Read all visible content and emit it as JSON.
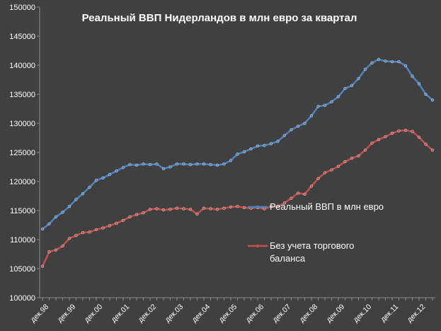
{
  "chart_data": {
    "type": "line",
    "title": "Реальный ВВП Нидерландов в млн евро за квартал",
    "xlabel": "",
    "ylabel": "",
    "ylim": [
      100000,
      150000
    ],
    "yticks": [
      100000,
      105000,
      110000,
      115000,
      120000,
      125000,
      130000,
      135000,
      140000,
      145000,
      150000
    ],
    "xtick_labels": [
      "дек.98",
      "дек.99",
      "дек.00",
      "дек.01",
      "дек.02",
      "дек.03",
      "дек.04",
      "дек.05",
      "дек.06",
      "дек.07",
      "дек.08",
      "дек.09",
      "дек.10",
      "дек.11",
      "дек.12"
    ],
    "x": [
      "1998 Q4",
      "1999 Q1",
      "1999 Q2",
      "1999 Q3",
      "1999 Q4",
      "2000 Q1",
      "2000 Q2",
      "2000 Q3",
      "2000 Q4",
      "2001 Q1",
      "2001 Q2",
      "2001 Q3",
      "2001 Q4",
      "2002 Q1",
      "2002 Q2",
      "2002 Q3",
      "2002 Q4",
      "2003 Q1",
      "2003 Q2",
      "2003 Q3",
      "2003 Q4",
      "2004 Q1",
      "2004 Q2",
      "2004 Q3",
      "2004 Q4",
      "2005 Q1",
      "2005 Q2",
      "2005 Q3",
      "2005 Q4",
      "2006 Q1",
      "2006 Q2",
      "2006 Q3",
      "2006 Q4",
      "2007 Q1",
      "2007 Q2",
      "2007 Q3",
      "2007 Q4",
      "2008 Q1",
      "2008 Q2",
      "2008 Q3",
      "2008 Q4",
      "2009 Q1",
      "2009 Q2",
      "2009 Q3",
      "2009 Q4",
      "2010 Q1",
      "2010 Q2",
      "2010 Q3",
      "2010 Q4",
      "2011 Q1",
      "2011 Q2",
      "2011 Q3",
      "2011 Q4",
      "2012 Q1",
      "2012 Q2",
      "2012 Q3",
      "2012 Q4",
      "2013 Q1",
      "2013 Q2"
    ],
    "series": [
      {
        "name": "Реальный ВВП в млн евро",
        "color": "#4f81bd",
        "values": [
          111800,
          112700,
          113900,
          114700,
          115700,
          116900,
          117900,
          119000,
          120200,
          120600,
          121200,
          121800,
          122400,
          122900,
          122800,
          123000,
          122900,
          123000,
          122200,
          122500,
          123000,
          123000,
          122900,
          123000,
          123000,
          122900,
          122800,
          123000,
          123600,
          124700,
          125100,
          125600,
          126100,
          126200,
          126500,
          126900,
          127900,
          128900,
          129500,
          130000,
          131300,
          132900,
          133100,
          133700,
          134600,
          136000,
          136500,
          137700,
          139300,
          140400,
          141000,
          140700,
          140600,
          140600,
          139900,
          138100,
          136800,
          135000,
          134000
        ]
      },
      {
        "name": "Без учета торгового баланса",
        "color": "#c0504d",
        "values": [
          105400,
          107900,
          108200,
          108900,
          110200,
          110700,
          111200,
          111300,
          111700,
          112000,
          112400,
          112800,
          113300,
          113900,
          114300,
          114600,
          115200,
          115300,
          115100,
          115200,
          115400,
          115300,
          115200,
          114400,
          115400,
          115300,
          115200,
          115400,
          115600,
          115700,
          115500,
          115400,
          115500,
          115300,
          115700,
          115700,
          116300,
          117100,
          118000,
          117800,
          119200,
          120500,
          121500,
          122000,
          122600,
          123400,
          124000,
          124400,
          125400,
          126600,
          127200,
          127700,
          128300,
          128700,
          128800,
          128600,
          127600,
          126400,
          125400
        ]
      }
    ],
    "legend_position": "right"
  }
}
